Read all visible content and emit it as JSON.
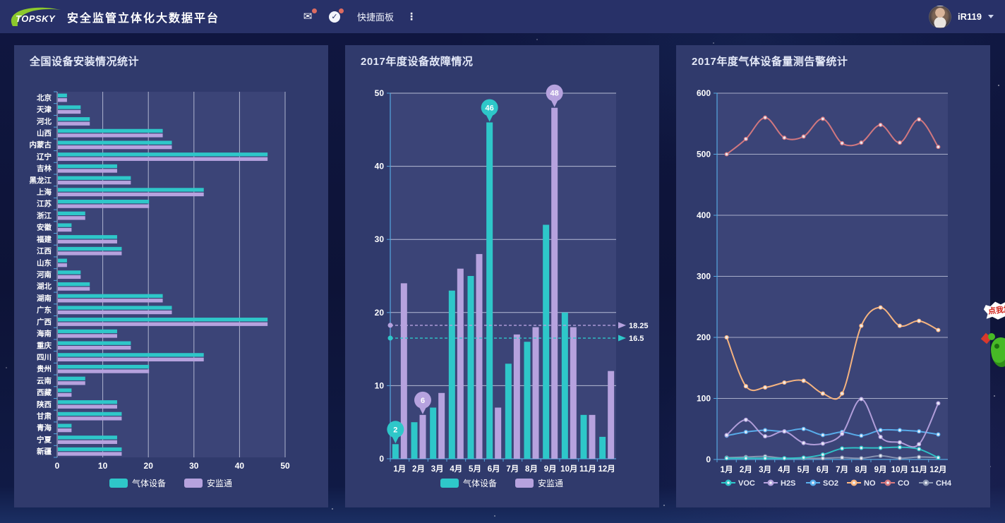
{
  "topbar": {
    "logo_text": "TOPSKY",
    "title": "安全监管立体化大数据平台",
    "quick_panel_label": "快捷面板",
    "username": "iR119",
    "icons": {
      "mail": {
        "name": "mail-icon",
        "glyph": "✉",
        "badge": true
      },
      "check": {
        "name": "check-circle-icon",
        "glyph": "✓",
        "badge": true
      },
      "more": {
        "name": "more-vertical-icon",
        "glyph": "⋮"
      }
    }
  },
  "mascot": {
    "bubble_text": "点我加"
  },
  "theme": {
    "topbar_bg": "#283168",
    "panel_bg": "#303a6c",
    "plot_bg": "#3b4477",
    "page_bg": "#0e1438",
    "grid_line": "#d5daec",
    "axis_line": "#56a8e0",
    "badge_red": "#dd6b60",
    "logo_green": "#8cc92c",
    "text": "#ffffff"
  },
  "chart_data": [
    {
      "type": "bar",
      "orientation": "horizontal",
      "title": "全国设备安装情况统计",
      "categories": [
        "北京",
        "天津",
        "河北",
        "山西",
        "内蒙古",
        "辽宁",
        "吉林",
        "黑龙江",
        "上海",
        "江苏",
        "浙江",
        "安徽",
        "福建",
        "江西",
        "山东",
        "河南",
        "湖北",
        "湖南",
        "广东",
        "广西",
        "海南",
        "重庆",
        "四川",
        "贵州",
        "云南",
        "西藏",
        "陕西",
        "甘肃",
        "青海",
        "宁夏",
        "新疆"
      ],
      "series": [
        {
          "name": "气体设备",
          "color": "#2ec7c9",
          "values": [
            2,
            5,
            7,
            23,
            25,
            46,
            13,
            16,
            32,
            20,
            6,
            3,
            13,
            14,
            2,
            5,
            7,
            23,
            25,
            46,
            13,
            16,
            32,
            20,
            6,
            3,
            13,
            14,
            3,
            13,
            14
          ]
        },
        {
          "name": "安监通",
          "color": "#b6a2de",
          "values": [
            2,
            5,
            7,
            23,
            25,
            46,
            13,
            16,
            32,
            20,
            6,
            3,
            13,
            14,
            2,
            5,
            7,
            23,
            25,
            46,
            13,
            16,
            32,
            20,
            6,
            3,
            13,
            14,
            3,
            13,
            14
          ]
        }
      ],
      "xlim": [
        0,
        50
      ],
      "xticks": [
        0,
        10,
        20,
        30,
        40,
        50
      ],
      "grid": true,
      "legend_position": "bottom"
    },
    {
      "type": "bar",
      "orientation": "vertical",
      "title": "2017年度设备故障情况",
      "categories": [
        "1月",
        "2月",
        "3月",
        "4月",
        "5月",
        "6月",
        "7月",
        "8月",
        "9月",
        "10月",
        "11月",
        "12月"
      ],
      "series": [
        {
          "name": "气体设备",
          "color": "#2ec7c9",
          "values": [
            2,
            5,
            7,
            23,
            25,
            46,
            13,
            16,
            32,
            20,
            6,
            3
          ],
          "average": 16.5,
          "markers": [
            {
              "index": 0,
              "value": 2,
              "label": "2"
            },
            {
              "index": 5,
              "value": 46,
              "label": "46"
            }
          ]
        },
        {
          "name": "安监通",
          "color": "#b6a2de",
          "values": [
            24,
            6,
            9,
            26,
            28,
            7,
            17,
            18,
            48,
            18,
            6,
            12
          ],
          "average": 18.25,
          "markers": [
            {
              "index": 1,
              "value": 6,
              "label": "6"
            },
            {
              "index": 8,
              "value": 48,
              "label": "48"
            }
          ]
        }
      ],
      "average_labels": [
        "18.25",
        "16.5"
      ],
      "ylim": [
        0,
        50
      ],
      "yticks": [
        0,
        10,
        20,
        30,
        40,
        50
      ],
      "grid": true,
      "legend_position": "bottom"
    },
    {
      "type": "line",
      "title": "2017年度气体设备量测告警统计",
      "categories": [
        "1月",
        "2月",
        "3月",
        "4月",
        "5月",
        "6月",
        "7月",
        "8月",
        "9月",
        "10月",
        "11月",
        "12月"
      ],
      "series": [
        {
          "name": "VOC",
          "color": "#2ec7c9",
          "values": [
            2,
            2,
            2,
            2,
            3,
            8,
            18,
            19,
            19,
            20,
            17,
            3
          ]
        },
        {
          "name": "H2S",
          "color": "#b6a2de",
          "values": [
            40,
            65,
            38,
            46,
            27,
            26,
            42,
            99,
            37,
            28,
            25,
            92
          ]
        },
        {
          "name": "SO2",
          "color": "#5ab1ef",
          "values": [
            39,
            45,
            48,
            46,
            50,
            40,
            45,
            39,
            48,
            48,
            46,
            41
          ]
        },
        {
          "name": "NO",
          "color": "#ffb980",
          "values": [
            200,
            120,
            118,
            126,
            129,
            108,
            108,
            219,
            249,
            219,
            227,
            212
          ]
        },
        {
          "name": "CO",
          "color": "#d87a80",
          "values": [
            500,
            525,
            560,
            527,
            529,
            558,
            518,
            519,
            548,
            519,
            557,
            512
          ]
        },
        {
          "name": "CH4",
          "color": "#8d98b3",
          "values": [
            3,
            4,
            5,
            2,
            2,
            2,
            3,
            2,
            6,
            2,
            4,
            3
          ]
        }
      ],
      "ylim": [
        0,
        600
      ],
      "yticks": [
        0,
        100,
        200,
        300,
        400,
        500,
        600
      ],
      "grid": true,
      "legend_position": "bottom"
    }
  ]
}
